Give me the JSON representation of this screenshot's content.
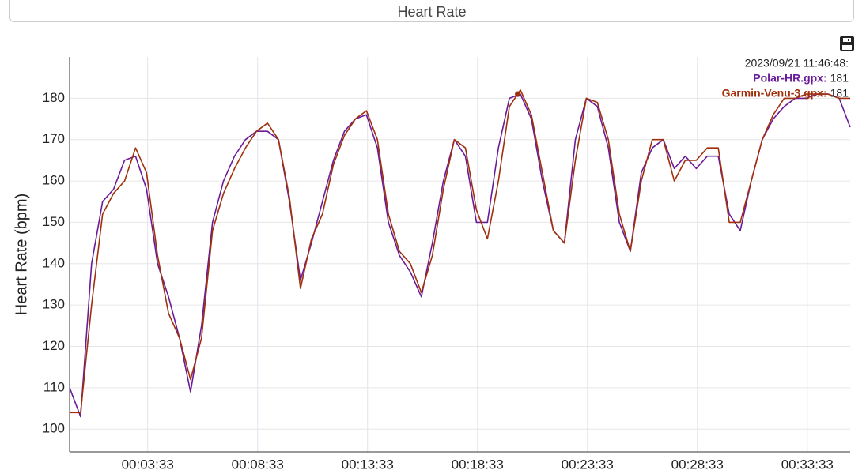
{
  "header": {
    "title": "Heart Rate"
  },
  "chart_data": {
    "type": "line",
    "y_label": "Heart Rate (bpm)",
    "x": [
      0,
      30,
      60,
      90,
      120,
      150,
      180,
      210,
      240,
      270,
      300,
      330,
      360,
      390,
      420,
      450,
      480,
      510,
      540,
      570,
      600,
      630,
      660,
      690,
      720,
      750,
      780,
      810,
      840,
      870,
      900,
      930,
      960,
      990,
      1020,
      1050,
      1080,
      1110,
      1140,
      1170,
      1200,
      1230,
      1260,
      1290,
      1320,
      1350,
      1380,
      1410,
      1440,
      1470,
      1500,
      1530,
      1560,
      1590,
      1620,
      1650,
      1680,
      1710,
      1740,
      1770,
      1800,
      1830,
      1860,
      1890,
      1920,
      1950,
      1980,
      2010,
      2040,
      2070,
      2100,
      2130
    ],
    "series": [
      {
        "color": "#6a1b9a",
        "values": [
          110,
          103,
          140,
          155,
          158,
          165,
          166,
          158,
          140,
          132,
          122,
          109,
          125,
          150,
          160,
          166,
          170,
          172,
          172,
          170,
          155,
          136,
          145,
          155,
          165,
          172,
          175,
          176,
          168,
          150,
          142,
          138,
          132,
          145,
          160,
          170,
          166,
          150,
          150,
          168,
          180,
          181,
          175,
          160,
          148,
          145,
          170,
          180,
          178,
          168,
          150,
          143,
          162,
          168,
          170,
          163,
          166,
          163,
          166,
          166,
          152,
          148,
          160,
          170,
          175,
          178,
          180,
          180,
          181,
          181,
          180,
          173
        ]
      },
      {
        "color": "#a0300c",
        "values": [
          104,
          104,
          130,
          152,
          157,
          160,
          168,
          162,
          142,
          128,
          122,
          112,
          122,
          148,
          157,
          163,
          168,
          172,
          174,
          170,
          156,
          134,
          146,
          152,
          164,
          171,
          175,
          177,
          170,
          152,
          143,
          140,
          133,
          142,
          158,
          170,
          168,
          153,
          146,
          160,
          178,
          182,
          176,
          162,
          148,
          145,
          165,
          180,
          179,
          170,
          152,
          143,
          160,
          170,
          170,
          160,
          165,
          165,
          168,
          168,
          150,
          150,
          160,
          170,
          176,
          180,
          180,
          181,
          181,
          181,
          180,
          180
        ]
      }
    ],
    "xlim": [
      0,
      2130
    ],
    "xticks": [
      {
        "value": 213,
        "label": "00:03:33"
      },
      {
        "value": 513,
        "label": "00:08:33"
      },
      {
        "value": 813,
        "label": "00:13:33"
      },
      {
        "value": 1113,
        "label": "00:18:33"
      },
      {
        "value": 1413,
        "label": "00:23:33"
      },
      {
        "value": 1713,
        "label": "00:28:33"
      },
      {
        "value": 2013,
        "label": "00:33:33"
      }
    ],
    "ylim": [
      94.5,
      190
    ],
    "yticks": [
      100,
      110,
      120,
      130,
      140,
      150,
      160,
      170,
      180
    ],
    "grid": true,
    "tooltip": {
      "header": "2023/09/21 11:46:48:",
      "x": 1223,
      "entries": [
        {
          "label": "Polar-HR.gpx:",
          "value": 181
        },
        {
          "label": "Garmin-Venu-3.gpx:",
          "value": 181
        }
      ]
    }
  }
}
